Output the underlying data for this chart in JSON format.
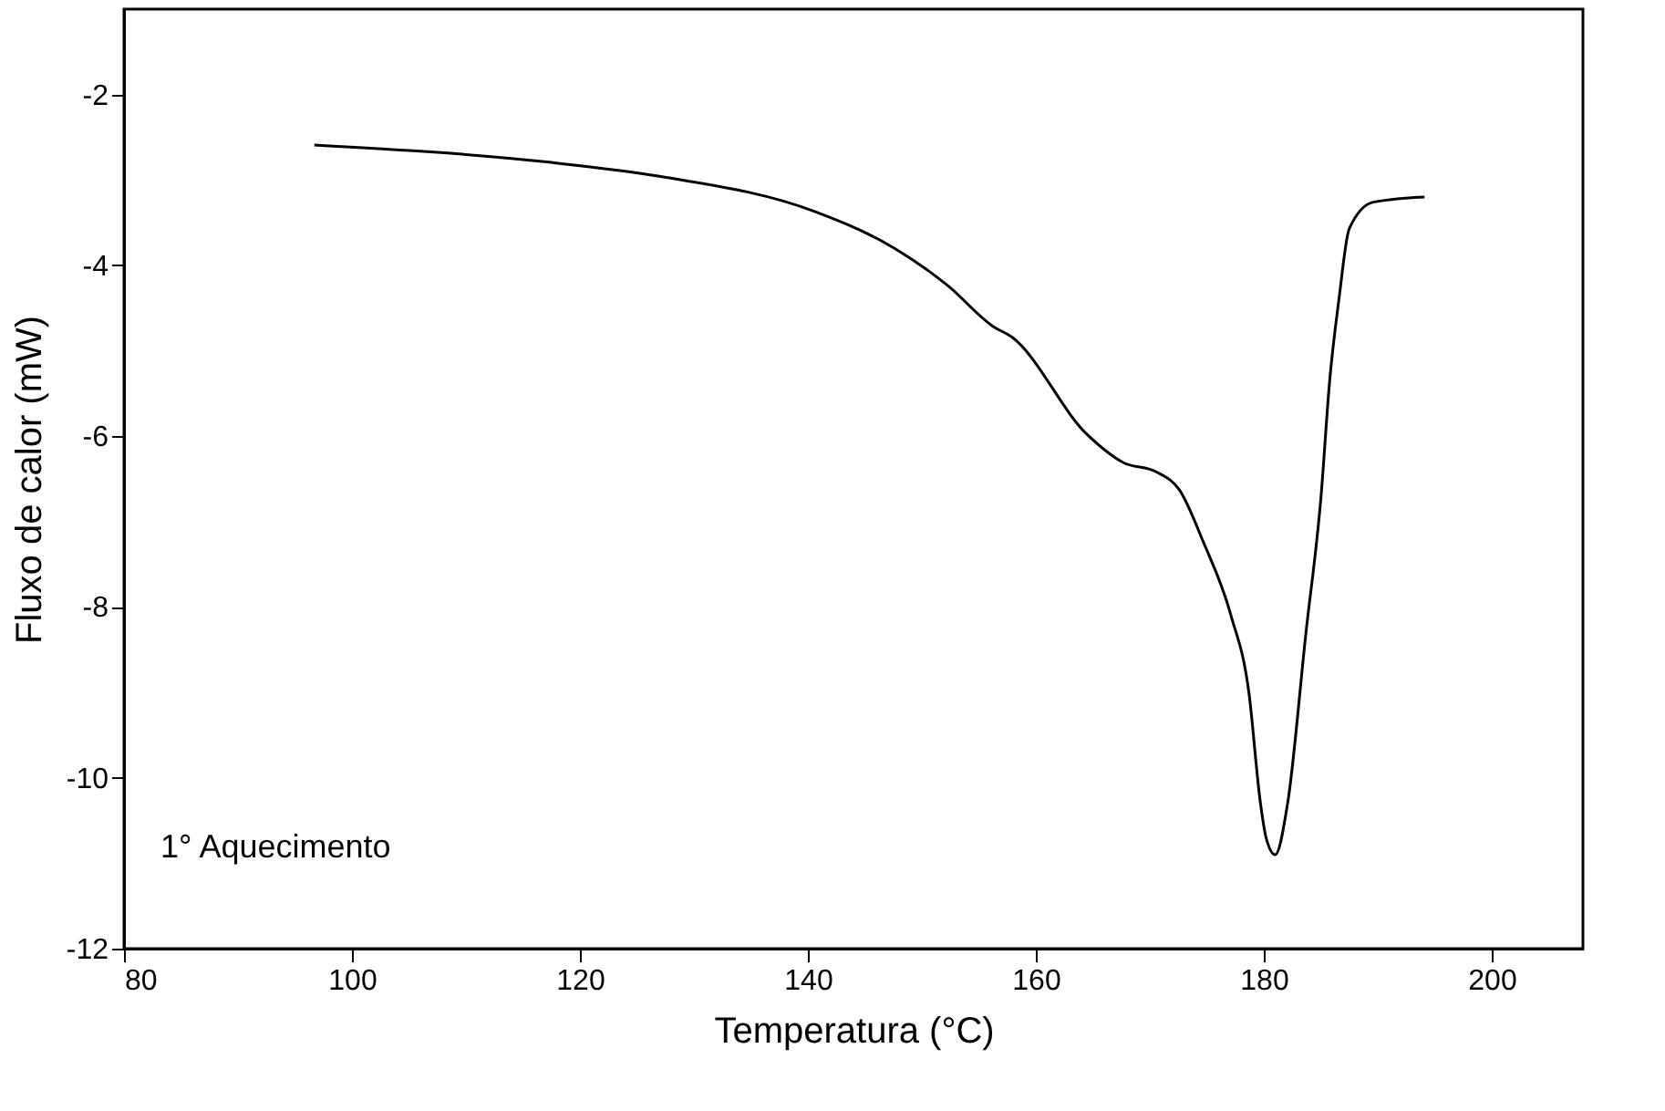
{
  "chart_data": {
    "type": "line",
    "xlabel": "Temperatura (°C)",
    "ylabel": "Fluxo de calor (mW)",
    "annotations": [
      "1° Aquecimento"
    ],
    "xlim": [
      80,
      208
    ],
    "xticks": [
      80,
      100,
      120,
      140,
      160,
      180,
      200
    ],
    "ylim": [
      -12,
      -1
    ],
    "yticks": [
      -12,
      -10,
      -8,
      -6,
      -4,
      -2
    ],
    "grid": false,
    "marker": "none",
    "line_style": "solid",
    "series": [
      {
        "color": "#000000",
        "x": [
          96.7,
          117.1,
          127.1,
          140.6,
          147.6,
          152.3,
          156.2,
          157.9,
          164.5,
          167.7,
          170.6,
          172.6,
          174.7,
          177.1,
          178.7,
          179.7,
          180.2,
          181.0,
          182.1,
          183.7,
          185.0,
          185.8,
          186.6,
          187.5,
          189.6,
          194.1
        ],
        "values": [
          -2.59,
          -2.79,
          -2.96,
          -3.37,
          -3.8,
          -4.24,
          -4.71,
          -4.84,
          -5.98,
          -6.31,
          -6.42,
          -6.63,
          -7.24,
          -8.09,
          -9.01,
          -10.29,
          -10.7,
          -10.9,
          -10.29,
          -8.3,
          -6.74,
          -5.32,
          -4.39,
          -3.57,
          -3.26,
          -3.2
        ]
      }
    ]
  }
}
